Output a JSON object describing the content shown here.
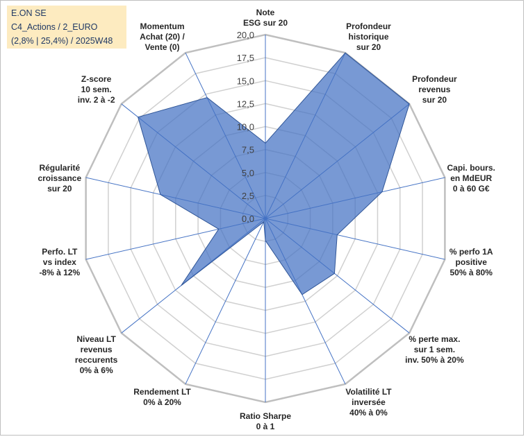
{
  "title_box": {
    "line1": "E.ON SE",
    "line2": "C4_Actions / 2_EURO",
    "line3": "(2,8% | 25,4%) / 2025W48"
  },
  "colors": {
    "fill": "#4472c4",
    "edge": "#2f5597",
    "grid": "#d0d0d0",
    "outer_ring": "#bfbfbf",
    "spoke": "#4472c4",
    "title_bg": "#fdebc0"
  },
  "chart_data": {
    "type": "radar",
    "title": "E.ON SE C4_Actions / 2_EURO (2,8% | 25,4%) / 2025W48",
    "range": [
      0,
      20
    ],
    "grid_step": 2.5,
    "labeled_ticks": [
      "0,0",
      "2,5",
      "5,0",
      "7,5",
      "10,0",
      "12,5",
      "15,0",
      "17,5",
      "20,0"
    ],
    "categories": [
      {
        "lines": [
          "Note",
          "ESG sur 20"
        ]
      },
      {
        "lines": [
          "Profondeur",
          "historique",
          "sur 20"
        ]
      },
      {
        "lines": [
          "Profondeur",
          "revenus",
          "sur 20"
        ]
      },
      {
        "lines": [
          "Capi. bours.",
          "en MdEUR",
          "0 à 60 G€"
        ]
      },
      {
        "lines": [
          "% perfo 1A",
          "positive",
          "50% à 80%"
        ]
      },
      {
        "lines": [
          "% perte max.",
          "sur 1 sem.",
          "inv. 50% à 20%"
        ]
      },
      {
        "lines": [
          "Volatilité LT",
          "inversée",
          "40% à 0%"
        ]
      },
      {
        "lines": [
          "Ratio Sharpe",
          "0 à 1"
        ]
      },
      {
        "lines": [
          "Rendement LT",
          "0% à 20%"
        ]
      },
      {
        "lines": [
          "Niveau LT",
          "revenus",
          "reccurents",
          "0% à 6%"
        ]
      },
      {
        "lines": [
          "Perfo. LT",
          "vs index",
          "-8% à 12%"
        ]
      },
      {
        "lines": [
          "Régularité",
          "croissance",
          "sur 20"
        ]
      },
      {
        "lines": [
          "Z-score",
          "10 sem.",
          "inv. 2 à -2"
        ]
      },
      {
        "lines": [
          "Momentum",
          "Achat (20) /",
          "Vente (0)"
        ]
      }
    ],
    "series": [
      {
        "name": "E.ON SE",
        "values": [
          8.2,
          20.0,
          20.0,
          13.0,
          8.0,
          9.6,
          9.2,
          2.4,
          0.4,
          11.7,
          5.2,
          11.7,
          17.7,
          14.6
        ]
      }
    ]
  }
}
